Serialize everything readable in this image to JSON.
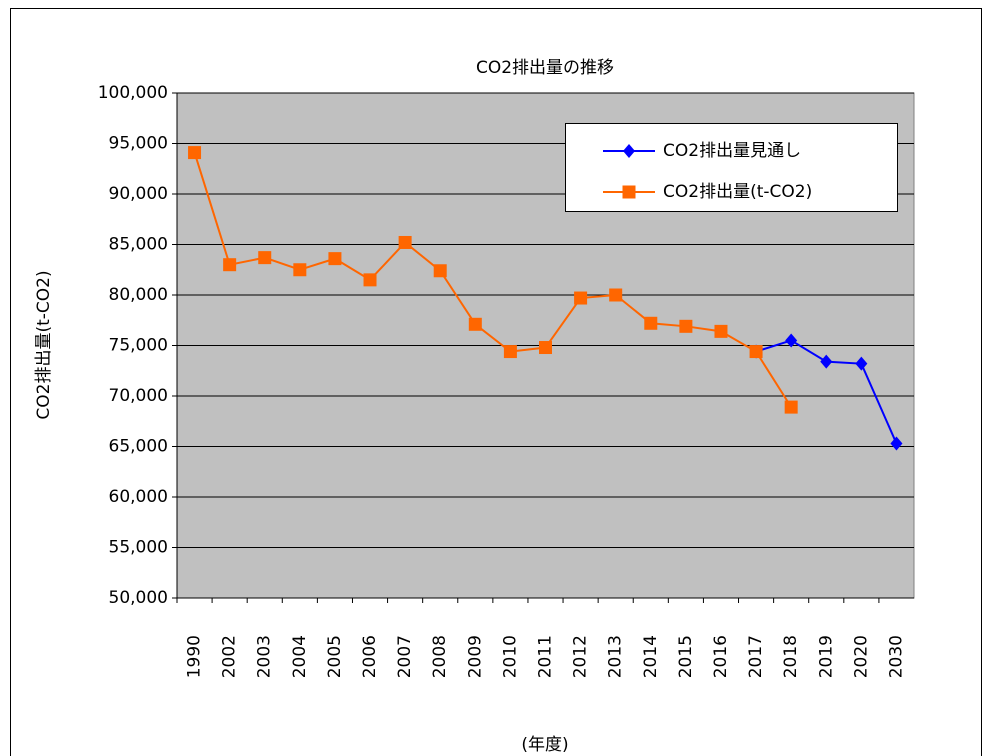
{
  "chart_data": {
    "type": "line",
    "title": "CO2排出量の推移",
    "x_label": "(年度)",
    "y_label": "CO2排出量(t-CO2)",
    "categories": [
      "1990",
      "2002",
      "2003",
      "2004",
      "2005",
      "2006",
      "2007",
      "2008",
      "2009",
      "2010",
      "2011",
      "2012",
      "2013",
      "2014",
      "2015",
      "2016",
      "2017",
      "2018",
      "2019",
      "2020",
      "2030"
    ],
    "series": [
      {
        "name": "CO2排出量見通し",
        "color": "#0000ff",
        "marker": "diamond",
        "values": [
          null,
          null,
          null,
          null,
          null,
          null,
          null,
          null,
          null,
          null,
          null,
          null,
          null,
          null,
          null,
          null,
          74400,
          75500,
          73400,
          73200,
          65300
        ]
      },
      {
        "name": "CO2排出量(t-CO2)",
        "color": "#ff6600",
        "marker": "square",
        "values": [
          94100,
          83000,
          83700,
          82500,
          83600,
          81500,
          85200,
          82400,
          77100,
          74400,
          74800,
          79700,
          80000,
          77200,
          76900,
          76400,
          74400,
          68900,
          null,
          null,
          null
        ]
      }
    ],
    "ylim": [
      50000,
      100000
    ],
    "yticks": [
      {
        "value": 50000,
        "label": "50,000"
      },
      {
        "value": 55000,
        "label": "55,000"
      },
      {
        "value": 60000,
        "label": "60,000"
      },
      {
        "value": 65000,
        "label": "65,000"
      },
      {
        "value": 70000,
        "label": "70,000"
      },
      {
        "value": 75000,
        "label": "75,000"
      },
      {
        "value": 80000,
        "label": "80,000"
      },
      {
        "value": 85000,
        "label": "85,000"
      },
      {
        "value": 90000,
        "label": "90,000"
      },
      {
        "value": 95000,
        "label": "95,000"
      },
      {
        "value": 100000,
        "label": "100,000"
      }
    ],
    "grid": true,
    "plot_background": "#c0c0c0",
    "legend_position": "upper right"
  }
}
